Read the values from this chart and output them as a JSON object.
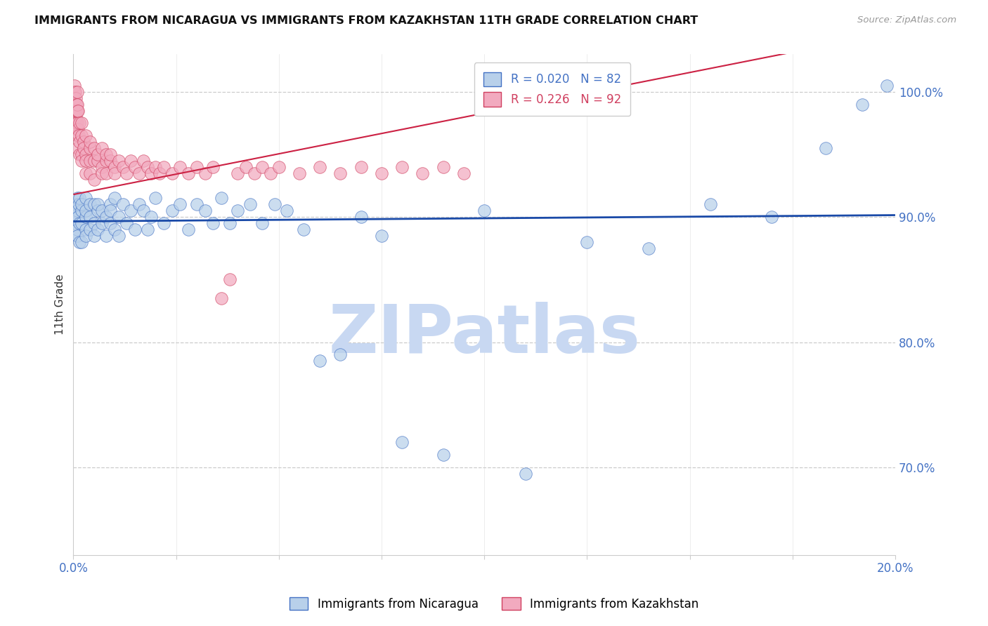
{
  "title": "IMMIGRANTS FROM NICARAGUA VS IMMIGRANTS FROM KAZAKHSTAN 11TH GRADE CORRELATION CHART",
  "source": "Source: ZipAtlas.com",
  "ylabel": "11th Grade",
  "right_ytick_vals": [
    70.0,
    80.0,
    90.0,
    100.0
  ],
  "right_ytick_labels": [
    "70.0%",
    "80.0%",
    "90.0%",
    "100.0%"
  ],
  "legend_nicaragua": "Immigrants from Nicaragua",
  "legend_kazakhstan": "Immigrants from Kazakhstan",
  "R_nicaragua": 0.02,
  "N_nicaragua": 82,
  "R_kazakhstan": 0.226,
  "N_kazakhstan": 92,
  "blue_face": "#b8d0ea",
  "blue_edge": "#4472c4",
  "pink_face": "#f2aabf",
  "pink_edge": "#d04060",
  "blue_trend_color": "#1a4aa8",
  "pink_trend_color": "#cc2244",
  "pink_trend_dash_color": "#f0c0c8",
  "watermark_zip": "#c8d8f2",
  "watermark_atlas": "#a0b8e0",
  "bg_color": "#ffffff",
  "grid_color": "#cccccc",
  "x_min": 0.0,
  "x_max": 0.2,
  "y_min": 63.0,
  "y_max": 103.0,
  "blue_slope": 2.5,
  "blue_intercept": 89.65,
  "pink_slope": 65.0,
  "pink_intercept": 91.8,
  "nic_x": [
    0.0003,
    0.0005,
    0.0007,
    0.0009,
    0.0009,
    0.001,
    0.001,
    0.001,
    0.001,
    0.0012,
    0.0013,
    0.0015,
    0.0015,
    0.0015,
    0.002,
    0.002,
    0.002,
    0.002,
    0.003,
    0.003,
    0.003,
    0.003,
    0.003,
    0.004,
    0.004,
    0.004,
    0.005,
    0.005,
    0.005,
    0.006,
    0.006,
    0.006,
    0.007,
    0.007,
    0.008,
    0.008,
    0.009,
    0.009,
    0.009,
    0.01,
    0.01,
    0.011,
    0.011,
    0.012,
    0.013,
    0.014,
    0.015,
    0.016,
    0.017,
    0.018,
    0.019,
    0.02,
    0.022,
    0.024,
    0.026,
    0.028,
    0.03,
    0.032,
    0.034,
    0.036,
    0.038,
    0.04,
    0.043,
    0.046,
    0.049,
    0.052,
    0.056,
    0.06,
    0.065,
    0.07,
    0.075,
    0.08,
    0.09,
    0.1,
    0.11,
    0.125,
    0.14,
    0.155,
    0.17,
    0.183,
    0.192,
    0.198
  ],
  "nic_y": [
    90.5,
    89.5,
    91.0,
    90.0,
    88.5,
    90.5,
    89.0,
    91.5,
    88.5,
    90.0,
    91.0,
    89.5,
    91.5,
    88.0,
    90.5,
    89.5,
    91.0,
    88.0,
    90.0,
    89.0,
    91.5,
    88.5,
    90.5,
    90.0,
    89.0,
    91.0,
    89.5,
    91.0,
    88.5,
    90.5,
    89.0,
    91.0,
    90.5,
    89.5,
    90.0,
    88.5,
    91.0,
    89.5,
    90.5,
    89.0,
    91.5,
    90.0,
    88.5,
    91.0,
    89.5,
    90.5,
    89.0,
    91.0,
    90.5,
    89.0,
    90.0,
    91.5,
    89.5,
    90.5,
    91.0,
    89.0,
    91.0,
    90.5,
    89.5,
    91.5,
    89.5,
    90.5,
    91.0,
    89.5,
    91.0,
    90.5,
    89.0,
    78.5,
    79.0,
    90.0,
    88.5,
    72.0,
    71.0,
    90.5,
    69.5,
    88.0,
    87.5,
    91.0,
    90.0,
    95.5,
    99.0,
    100.5
  ],
  "kaz_x": [
    0.0001,
    0.0002,
    0.0003,
    0.0003,
    0.0004,
    0.0004,
    0.0005,
    0.0005,
    0.0005,
    0.0006,
    0.0006,
    0.0007,
    0.0007,
    0.0008,
    0.0008,
    0.0009,
    0.0009,
    0.001,
    0.001,
    0.001,
    0.001,
    0.001,
    0.0012,
    0.0012,
    0.0013,
    0.0015,
    0.0015,
    0.0015,
    0.002,
    0.002,
    0.002,
    0.002,
    0.0025,
    0.0025,
    0.003,
    0.003,
    0.003,
    0.003,
    0.004,
    0.004,
    0.004,
    0.004,
    0.005,
    0.005,
    0.005,
    0.006,
    0.006,
    0.007,
    0.007,
    0.007,
    0.008,
    0.008,
    0.008,
    0.009,
    0.009,
    0.01,
    0.01,
    0.011,
    0.012,
    0.013,
    0.014,
    0.015,
    0.016,
    0.017,
    0.018,
    0.019,
    0.02,
    0.021,
    0.022,
    0.024,
    0.026,
    0.028,
    0.03,
    0.032,
    0.034,
    0.036,
    0.038,
    0.04,
    0.042,
    0.044,
    0.046,
    0.048,
    0.05,
    0.055,
    0.06,
    0.065,
    0.07,
    0.075,
    0.08,
    0.085,
    0.09,
    0.095
  ],
  "kaz_y": [
    99.5,
    100.0,
    98.5,
    100.5,
    99.0,
    97.5,
    98.5,
    97.0,
    100.0,
    98.0,
    99.5,
    97.5,
    98.5,
    99.0,
    97.0,
    98.5,
    100.0,
    97.5,
    96.5,
    98.5,
    95.5,
    99.0,
    97.0,
    98.5,
    96.5,
    97.5,
    96.0,
    95.0,
    96.5,
    97.5,
    95.0,
    94.5,
    96.0,
    95.5,
    95.0,
    94.5,
    96.5,
    93.5,
    95.5,
    94.5,
    96.0,
    93.5,
    94.5,
    95.5,
    93.0,
    94.5,
    95.0,
    94.0,
    95.5,
    93.5,
    94.5,
    95.0,
    93.5,
    94.5,
    95.0,
    94.0,
    93.5,
    94.5,
    94.0,
    93.5,
    94.5,
    94.0,
    93.5,
    94.5,
    94.0,
    93.5,
    94.0,
    93.5,
    94.0,
    93.5,
    94.0,
    93.5,
    94.0,
    93.5,
    94.0,
    83.5,
    85.0,
    93.5,
    94.0,
    93.5,
    94.0,
    93.5,
    94.0,
    93.5,
    94.0,
    93.5,
    94.0,
    93.5,
    94.0,
    93.5,
    94.0,
    93.5
  ],
  "x_tick_positions": [
    0.0,
    0.025,
    0.05,
    0.075,
    0.1,
    0.125,
    0.15,
    0.175,
    0.2
  ]
}
